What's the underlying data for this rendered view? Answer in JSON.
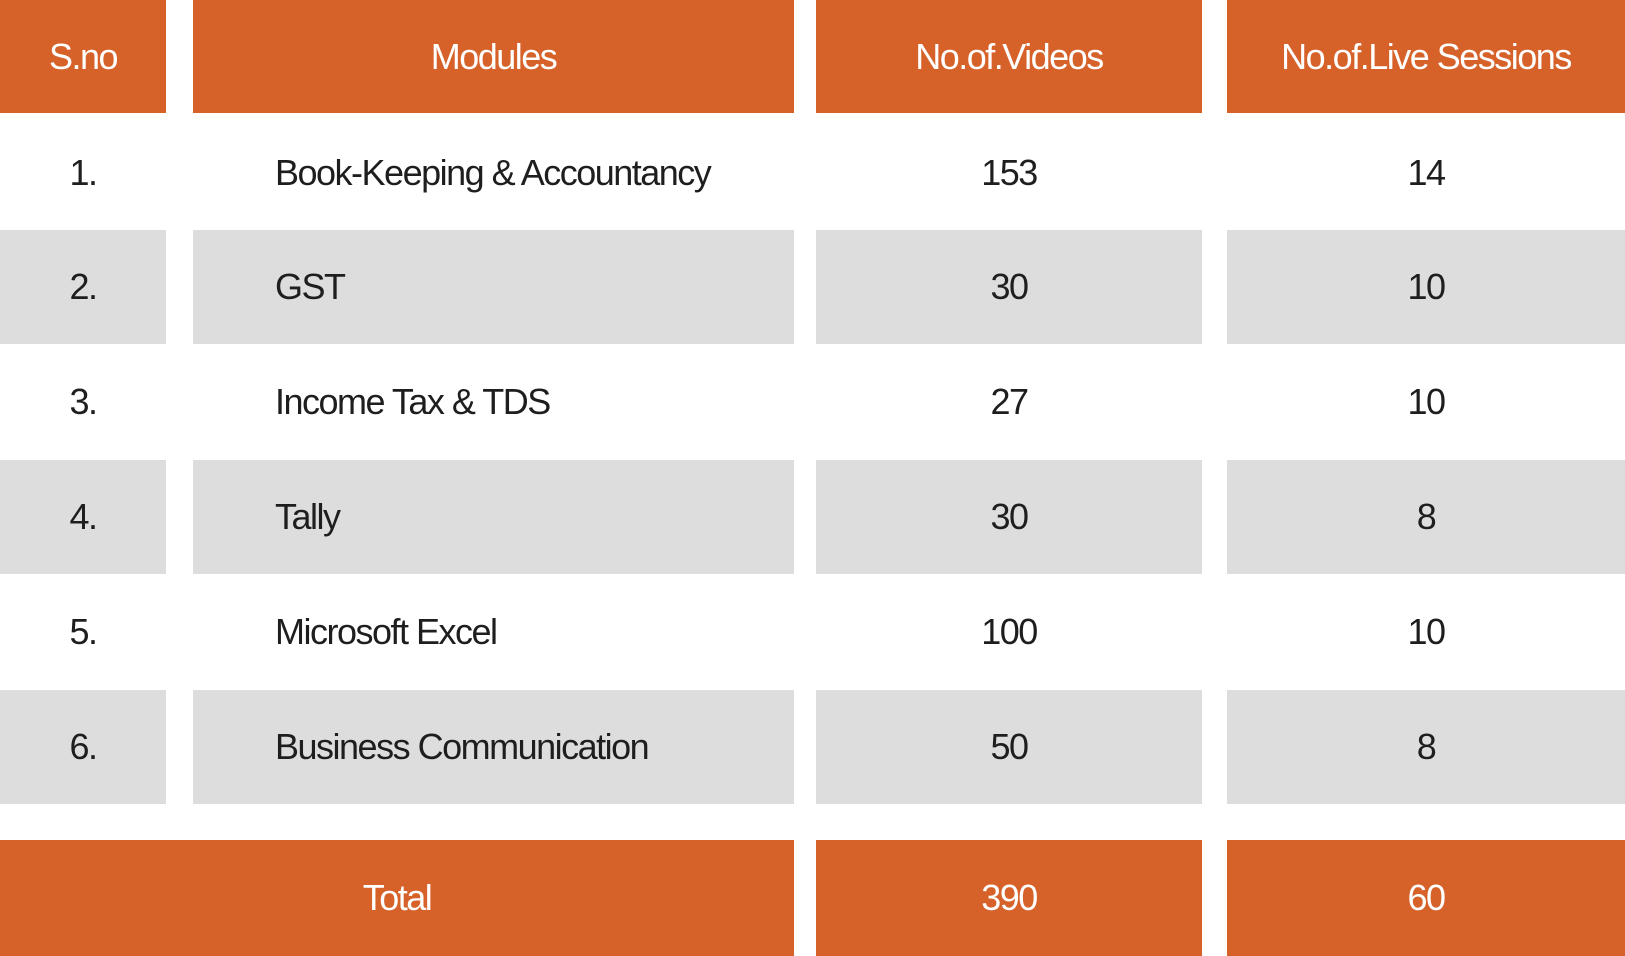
{
  "table": {
    "headers": [
      "S.no",
      "Modules",
      "No.of.Videos",
      "No.of.Live Sessions"
    ],
    "rows": [
      {
        "sno": "1.",
        "module": "Book-Keeping & Accountancy",
        "videos": "153",
        "sessions": "14"
      },
      {
        "sno": "2.",
        "module": "GST",
        "videos": "30",
        "sessions": "10"
      },
      {
        "sno": "3.",
        "module": "Income Tax & TDS",
        "videos": "27",
        "sessions": "10"
      },
      {
        "sno": "4.",
        "module": "Tally",
        "videos": "30",
        "sessions": "8"
      },
      {
        "sno": "5.",
        "module": "Microsoft Excel",
        "videos": "100",
        "sessions": "10"
      },
      {
        "sno": "6.",
        "module": "Business Communication",
        "videos": "50",
        "sessions": "8"
      }
    ],
    "total": {
      "label": "Total",
      "videos": "390",
      "sessions": "60"
    }
  },
  "colors": {
    "header_bg": "#d6622a",
    "header_text": "#ffffff",
    "row_shade": "#dddddd",
    "row_plain": "#ffffff",
    "body_text": "#1e1e1e"
  }
}
